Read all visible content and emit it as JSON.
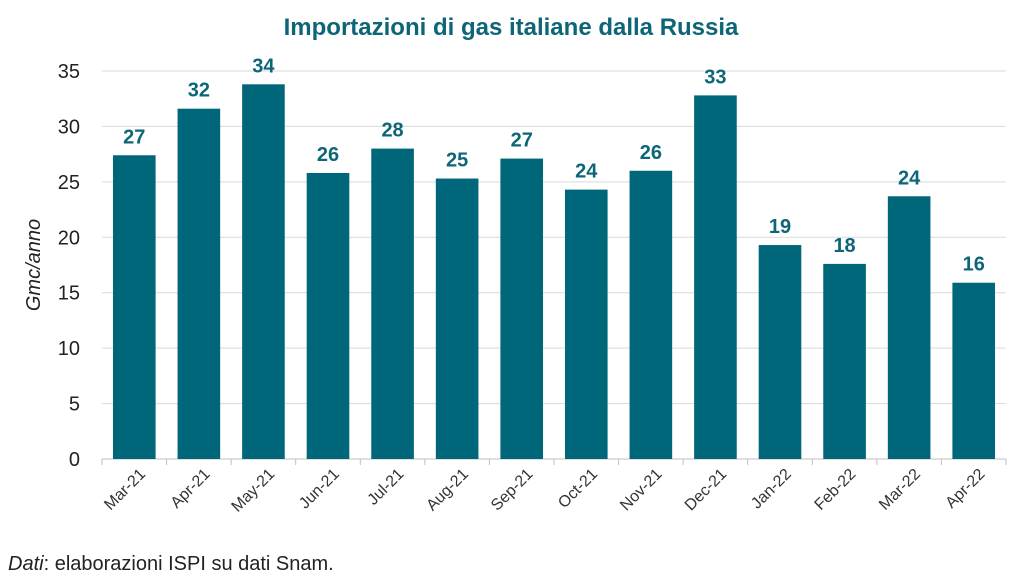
{
  "chart_data": {
    "type": "bar",
    "title": "Importazioni di gas italiane dalla Russia",
    "ylabel": "Gmc/anno",
    "xlabel": "",
    "categories": [
      "Mar-21",
      "Apr-21",
      "May-21",
      "Jun-21",
      "Jul-21",
      "Aug-21",
      "Sep-21",
      "Oct-21",
      "Nov-21",
      "Dec-21",
      "Jan-22",
      "Feb-22",
      "Mar-22",
      "Apr-22"
    ],
    "values": [
      27.4,
      31.6,
      33.8,
      25.8,
      28.0,
      25.3,
      27.1,
      24.3,
      26.0,
      32.8,
      19.3,
      17.6,
      23.7,
      15.9
    ],
    "data_labels": [
      "27",
      "32",
      "34",
      "26",
      "28",
      "25",
      "27",
      "24",
      "26",
      "33",
      "19",
      "18",
      "24",
      "16"
    ],
    "ylim": [
      0,
      35
    ],
    "yticks": [
      0,
      5,
      10,
      15,
      20,
      25,
      30,
      35
    ],
    "grid": true,
    "bar_color": "#00667a",
    "label_color": "#0d6677"
  },
  "source": {
    "label": "Dati",
    "text": ": elaborazioni ISPI su dati Snam."
  }
}
